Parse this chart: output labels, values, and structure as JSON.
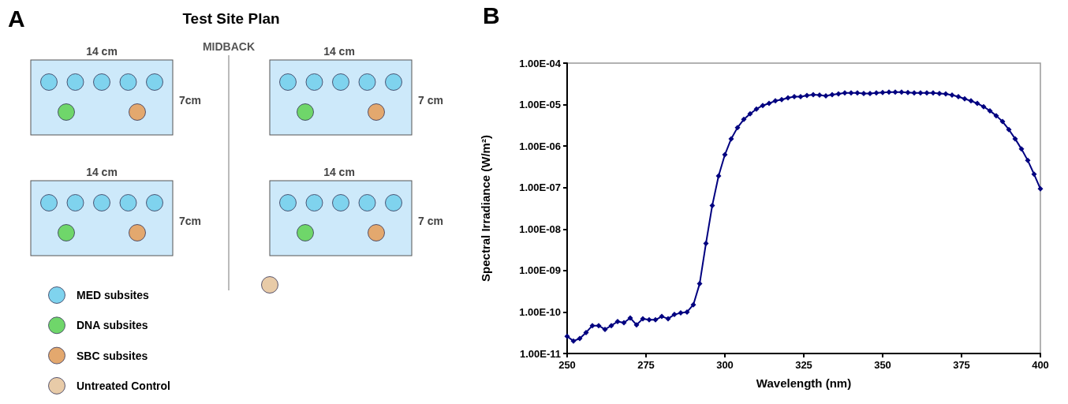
{
  "chart_data": [
    {
      "type": "other",
      "title": "Test Site Plan",
      "annotations": [
        "A",
        "MIDBACK",
        "14 cm",
        "7cm",
        "14 cm",
        "7 cm",
        "14 cm",
        "7cm",
        "14 cm",
        "7 cm",
        "MED subsites",
        "DNA subsites",
        "SBC subsites",
        "Untreated Control"
      ]
    },
    {
      "type": "line",
      "annotations": [
        "B"
      ],
      "xlabel": "Wavelength (nm)",
      "ylabel": "Spectral Irradiance (W/m²)",
      "log": "y",
      "marker": "diamond",
      "line_style": "solid",
      "xlim": [
        250,
        400
      ],
      "xticks": [
        250,
        275,
        300,
        325,
        350,
        375,
        400
      ],
      "ylim": [
        1e-11,
        0.0001
      ],
      "yticks": [
        {
          "value": 1e-11,
          "label": "1.00E-11"
        },
        {
          "value": 1e-10,
          "label": "1.00E-10"
        },
        {
          "value": 1e-09,
          "label": "1.00E-09"
        },
        {
          "value": 1e-08,
          "label": "1.00E-08"
        },
        {
          "value": 1e-07,
          "label": "1.00E-07"
        },
        {
          "value": 1e-06,
          "label": "1.00E-06"
        },
        {
          "value": 1e-05,
          "label": "1.00E-05"
        },
        {
          "value": 0.0001,
          "label": "1.00E-04"
        }
      ],
      "x": [
        250,
        252,
        254,
        256,
        258,
        260,
        262,
        264,
        266,
        268,
        270,
        272,
        274,
        276,
        278,
        280,
        282,
        284,
        286,
        288,
        290,
        292,
        294,
        296,
        298,
        300,
        302,
        304,
        306,
        308,
        310,
        312,
        314,
        316,
        318,
        320,
        322,
        324,
        326,
        328,
        330,
        332,
        334,
        336,
        338,
        340,
        342,
        344,
        346,
        348,
        350,
        352,
        354,
        356,
        358,
        360,
        362,
        364,
        366,
        368,
        370,
        372,
        374,
        376,
        378,
        380,
        382,
        384,
        386,
        388,
        390,
        392,
        394,
        396,
        398,
        400
      ],
      "series": [
        {
          "color": "#000080",
          "values": [
            2.6e-11,
            2e-11,
            2.3e-11,
            3.2e-11,
            4.7e-11,
            4.7e-11,
            3.8e-11,
            4.7e-11,
            5.9e-11,
            5.5e-11,
            7.2e-11,
            4.9e-11,
            6.9e-11,
            6.5e-11,
            6.5e-11,
            7.8e-11,
            6.9e-11,
            8.7e-11,
            9.5e-11,
            1e-10,
            1.5e-10,
            4.8e-10,
            4.5e-09,
            3.7e-08,
            1.9e-07,
            6.2e-07,
            1.5e-06,
            2.8e-06,
            4.4e-06,
            6e-06,
            7.8e-06,
            9.5e-06,
            1.07e-05,
            1.23e-05,
            1.32e-05,
            1.45e-05,
            1.55e-05,
            1.55e-05,
            1.66e-05,
            1.74e-05,
            1.7e-05,
            1.62e-05,
            1.74e-05,
            1.82e-05,
            1.91e-05,
            1.91e-05,
            1.91e-05,
            1.86e-05,
            1.86e-05,
            1.91e-05,
            1.95e-05,
            2e-05,
            2e-05,
            2e-05,
            1.95e-05,
            1.91e-05,
            1.91e-05,
            1.91e-05,
            1.91e-05,
            1.86e-05,
            1.82e-05,
            1.7e-05,
            1.55e-05,
            1.38e-05,
            1.23e-05,
            1.07e-05,
            8.9e-06,
            7.1e-06,
            5.4e-06,
            3.9e-06,
            2.5e-06,
            1.5e-06,
            8.5e-07,
            4.5e-07,
            2.1e-07,
            9.3e-08
          ]
        }
      ]
    }
  ]
}
